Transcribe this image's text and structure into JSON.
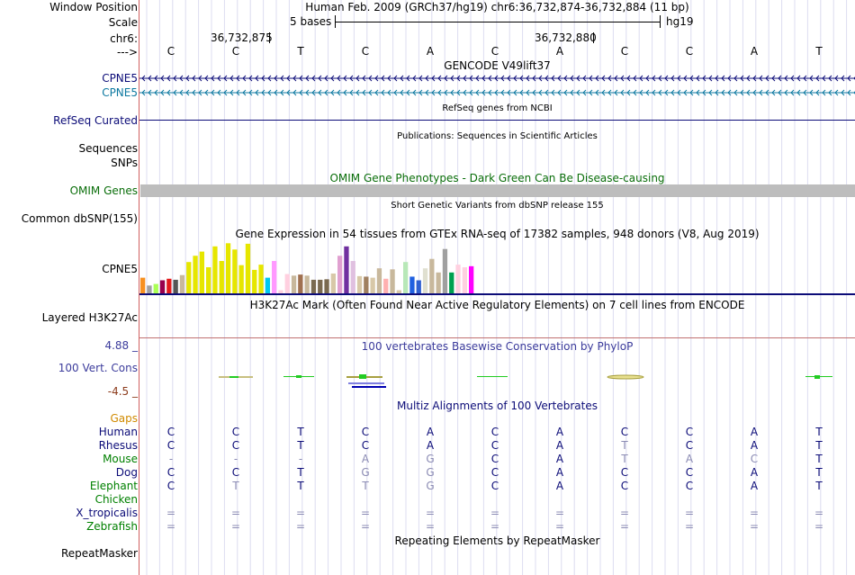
{
  "header": {
    "window_label": "Window Position",
    "window_text": "Human Feb. 2009 (GRCh37/hg19)   chr6:36,732,874-36,732,884 (11 bp)",
    "scale_label": "Scale",
    "scale_text": "5 bases",
    "scale_assembly": "hg19",
    "chrom_label": "chr6:",
    "coord1": "36,732,875",
    "coord2": "36,732,880",
    "strand_label": "--->"
  },
  "bases": [
    "C",
    "C",
    "T",
    "C",
    "A",
    "C",
    "A",
    "C",
    "C",
    "A",
    "T"
  ],
  "tracks": {
    "gencode_title": "GENCODE V49lift37",
    "gene1": "CPNE5",
    "gene2": "CPNE5",
    "refseq_title": "RefSeq genes from NCBI",
    "refseq_label": "RefSeq Curated",
    "pubs_title": "Publications: Sequences in Scientific Articles",
    "pubs_label": "Sequences",
    "snps_label": "SNPs",
    "omim_title": "OMIM Gene Phenotypes - Dark Green Can Be Disease-causing",
    "omim_label": "OMIM Genes",
    "dbsnp_title": "Short Genetic Variants from dbSNP release 155",
    "dbsnp_label": "Common dbSNP(155)",
    "gtex_title": "Gene Expression in 54 tissues from GTEx RNA-seq of 17382 samples, 948 donors (V8, Aug 2019)",
    "gtex_label": "CPNE5",
    "h3k27_title": "H3K27Ac Mark (Often Found Near Active Regulatory Elements) on 7 cell lines from ENCODE",
    "h3k27_label": "Layered H3K27Ac",
    "phylop_title": "100 vertebrates Basewise Conservation by PhyloP",
    "phylop_label": "100 Vert. Cons",
    "phylop_max": "4.88 _",
    "phylop_min": "-4.5 _",
    "multiz_title": "Multiz Alignments of 100 Vertebrates",
    "repeat_title": "Repeating Elements by RepeatMasker",
    "repeat_label": "RepeatMasker"
  },
  "colors": {
    "gene_dark": "#0c0c78",
    "gene_teal": "#0c78a0",
    "omim_title": "#0a6e0a",
    "omim_bar": "#bdbdbd",
    "phylop_blue": "#3c3c9c",
    "phylop_min": "#8b3a1a",
    "gaps": "#d08a00",
    "species_green": "#008000",
    "species_dark": "#0c0c78",
    "divider": "#d06060"
  },
  "gtex_bars": [
    {
      "v": 0.3,
      "c": "#f79020"
    },
    {
      "v": 0.15,
      "c": "#a0a0a0"
    },
    {
      "v": 0.18,
      "c": "#aaff55"
    },
    {
      "v": 0.25,
      "c": "#99004d"
    },
    {
      "v": 0.28,
      "c": "#e31a1c"
    },
    {
      "v": 0.26,
      "c": "#555555"
    },
    {
      "v": 0.35,
      "c": "#c8b89c"
    },
    {
      "v": 0.6,
      "c": "#e6e600"
    },
    {
      "v": 0.72,
      "c": "#e6e600"
    },
    {
      "v": 0.8,
      "c": "#e6e600"
    },
    {
      "v": 0.5,
      "c": "#e6e600"
    },
    {
      "v": 0.9,
      "c": "#e6e600"
    },
    {
      "v": 0.62,
      "c": "#e6e600"
    },
    {
      "v": 0.96,
      "c": "#e6e600"
    },
    {
      "v": 0.84,
      "c": "#e6e600"
    },
    {
      "v": 0.54,
      "c": "#e6e600"
    },
    {
      "v": 0.95,
      "c": "#e6e600"
    },
    {
      "v": 0.45,
      "c": "#e6e600"
    },
    {
      "v": 0.55,
      "c": "#e6e600"
    },
    {
      "v": 0.3,
      "c": "#00c8f0"
    },
    {
      "v": 0.62,
      "c": "#ff99ff"
    },
    {
      "v": 0.06,
      "c": "#ffd0e0"
    },
    {
      "v": 0.37,
      "c": "#ffd0e0"
    },
    {
      "v": 0.34,
      "c": "#c8b89c"
    },
    {
      "v": 0.36,
      "c": "#a07050"
    },
    {
      "v": 0.34,
      "c": "#c8b89c"
    },
    {
      "v": 0.26,
      "c": "#7a6a50"
    },
    {
      "v": 0.26,
      "c": "#7a6a50"
    },
    {
      "v": 0.27,
      "c": "#7a6a50"
    },
    {
      "v": 0.38,
      "c": "#d8c8a8"
    },
    {
      "v": 0.72,
      "c": "#e0a0d0"
    },
    {
      "v": 0.9,
      "c": "#7030a0"
    },
    {
      "v": 0.62,
      "c": "#e0c0e0"
    },
    {
      "v": 0.33,
      "c": "#d8c8a8"
    },
    {
      "v": 0.32,
      "c": "#a08060"
    },
    {
      "v": 0.3,
      "c": "#d8c8a8"
    },
    {
      "v": 0.48,
      "c": "#c8b89c"
    },
    {
      "v": 0.28,
      "c": "#ffb0b0"
    },
    {
      "v": 0.46,
      "c": "#c8b89c"
    },
    {
      "v": 0.06,
      "c": "#d8c8a8"
    },
    {
      "v": 0.6,
      "c": "#b8e8b8"
    },
    {
      "v": 0.32,
      "c": "#2060e0"
    },
    {
      "v": 0.25,
      "c": "#3060d0"
    },
    {
      "v": 0.48,
      "c": "#e0e0d0"
    },
    {
      "v": 0.66,
      "c": "#c8b89c"
    },
    {
      "v": 0.4,
      "c": "#c8b89c"
    },
    {
      "v": 0.85,
      "c": "#a0a0a0"
    },
    {
      "v": 0.4,
      "c": "#00a050"
    },
    {
      "v": 0.55,
      "c": "#ffd0e0"
    },
    {
      "v": 0.5,
      "c": "#ffd0e0"
    },
    {
      "v": 0.52,
      "c": "#ff00ff"
    }
  ],
  "multiz": {
    "gaps_label": "Gaps",
    "rows": [
      {
        "name": "Human",
        "color": "#0c0c78",
        "bases": [
          "C",
          "C",
          "T",
          "C",
          "A",
          "C",
          "A",
          "C",
          "C",
          "A",
          "T"
        ],
        "dim": [
          0,
          0,
          0,
          0,
          0,
          0,
          0,
          0,
          0,
          0,
          0
        ]
      },
      {
        "name": "Rhesus",
        "color": "#0c0c78",
        "bases": [
          "C",
          "C",
          "T",
          "C",
          "A",
          "C",
          "A",
          "T",
          "C",
          "A",
          "T"
        ],
        "dim": [
          0,
          0,
          0,
          0,
          0,
          0,
          0,
          1,
          0,
          0,
          0
        ]
      },
      {
        "name": "Mouse",
        "color": "#008000",
        "bases": [
          "-",
          "-",
          "-",
          "A",
          "G",
          "C",
          "A",
          "T",
          "A",
          "C",
          "T"
        ],
        "dim": [
          1,
          1,
          1,
          1,
          1,
          0,
          0,
          1,
          1,
          1,
          0
        ]
      },
      {
        "name": "Dog",
        "color": "#0c0c78",
        "bases": [
          "C",
          "C",
          "T",
          "G",
          "G",
          "C",
          "A",
          "C",
          "C",
          "A",
          "T"
        ],
        "dim": [
          0,
          0,
          0,
          1,
          1,
          0,
          0,
          0,
          0,
          0,
          0
        ]
      },
      {
        "name": "Elephant",
        "color": "#008000",
        "bases": [
          "C",
          "T",
          "T",
          "T",
          "G",
          "C",
          "A",
          "C",
          "C",
          "A",
          "T"
        ],
        "dim": [
          0,
          1,
          0,
          1,
          1,
          0,
          0,
          0,
          0,
          0,
          0
        ]
      },
      {
        "name": "Chicken",
        "color": "#008000",
        "bases": [
          "",
          "",
          "",
          "",
          "",
          "",
          "",
          "",
          "",
          "",
          ""
        ],
        "dim": [
          0,
          0,
          0,
          0,
          0,
          0,
          0,
          0,
          0,
          0,
          0
        ]
      },
      {
        "name": "X_tropicalis",
        "color": "#0c0c78",
        "bases": [
          "=",
          "=",
          "=",
          "=",
          "=",
          "=",
          "=",
          "=",
          "=",
          "=",
          "="
        ],
        "dim": [
          1,
          1,
          1,
          1,
          1,
          1,
          1,
          1,
          1,
          1,
          1
        ]
      },
      {
        "name": "Zebrafish",
        "color": "#008000",
        "bases": [
          "=",
          "=",
          "=",
          "=",
          "=",
          "=",
          "=",
          "=",
          "=",
          "=",
          "="
        ],
        "dim": [
          1,
          1,
          1,
          1,
          1,
          1,
          1,
          1,
          1,
          1,
          1
        ]
      }
    ]
  }
}
